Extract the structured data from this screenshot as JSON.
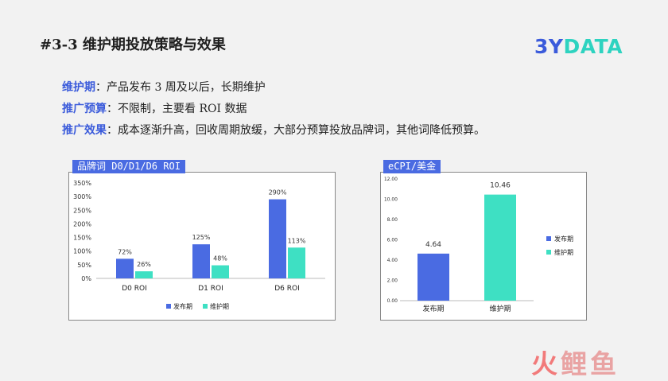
{
  "slide": {
    "title": "#3-3 维护期投放策略与效果",
    "logo_part1": "3Y",
    "logo_part2": "DATA",
    "watermark_part1": "火",
    "watermark_part2": "鲤鱼"
  },
  "bullets": [
    {
      "key": "维护期",
      "text": "：产品发布 3 周及以后，长期维护"
    },
    {
      "key": "推广预算",
      "text": "：不限制，主要看 ROI 数据"
    },
    {
      "key": "推广效果",
      "text": "：成本逐渐升高，回收周期放缓，大部分预算投放品牌词，其他词降低预算。"
    }
  ],
  "colors": {
    "accent": "#3b5bdb",
    "series_release": "#4a6be2",
    "series_maintenance": "#3ee0c3"
  },
  "chart_data": [
    {
      "type": "bar",
      "title": "品牌词 D0/D1/D6 ROI",
      "categories": [
        "D0 ROI",
        "D1 ROI",
        "D6 ROI"
      ],
      "series": [
        {
          "name": "发布期",
          "values": [
            72,
            125,
            290
          ],
          "labels": [
            "72%",
            "125%",
            "290%"
          ]
        },
        {
          "name": "维护期",
          "values": [
            26,
            48,
            113
          ],
          "labels": [
            "26%",
            "48%",
            "113%"
          ]
        }
      ],
      "ylim": [
        0,
        350
      ],
      "yticks": [
        "0%",
        "50%",
        "100%",
        "150%",
        "200%",
        "250%",
        "300%",
        "350%"
      ],
      "legend": "bottom",
      "grid": false
    },
    {
      "type": "bar",
      "title": "eCPI/美金",
      "categories": [
        "发布期",
        "维护期"
      ],
      "values": [
        4.64,
        10.46
      ],
      "labels": [
        "4.64",
        "10.46"
      ],
      "legend_entries": [
        "发布期",
        "维护期"
      ],
      "ylim": [
        0,
        12
      ],
      "yticks": [
        "0.00",
        "2.00",
        "4.00",
        "6.00",
        "8.00",
        "10.00",
        "12.00"
      ],
      "legend": "right",
      "grid": false
    }
  ]
}
